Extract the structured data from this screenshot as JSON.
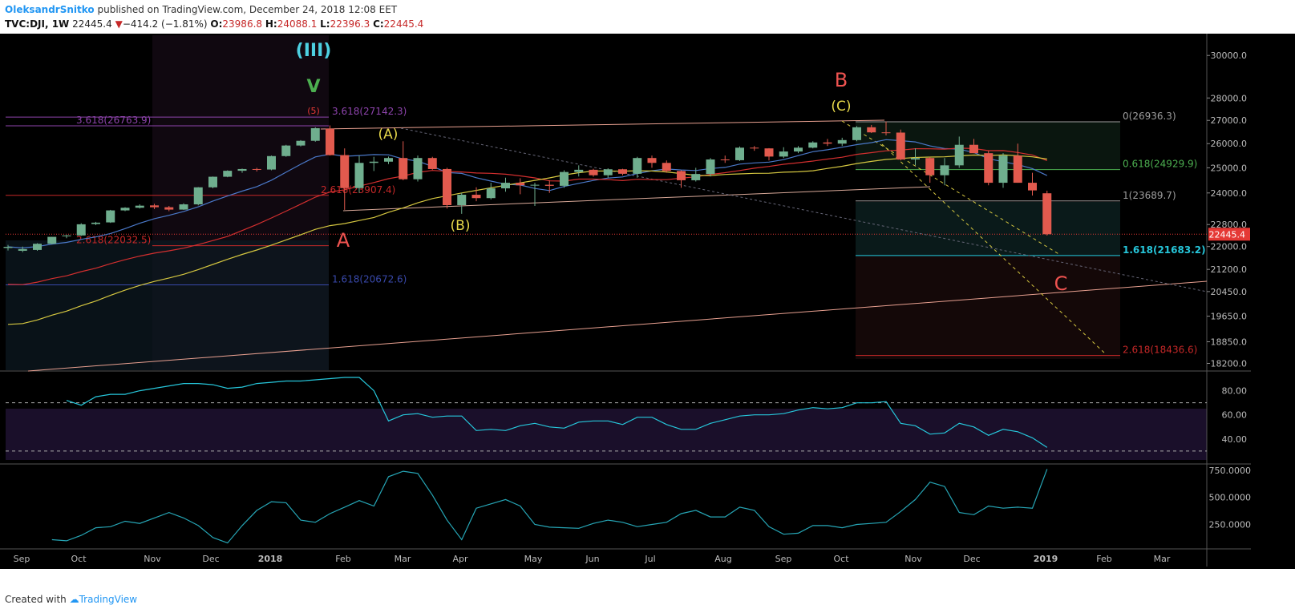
{
  "header": {
    "author": "OleksandrSnitko",
    "published": "published on TradingView.com, December 24, 2018 12:08 EET",
    "symbol": "TVC:DJI, 1W",
    "last": "22445.4",
    "arrow": "▼",
    "change": "−414.2 (−1.81%)",
    "o_label": "O:",
    "o_value": "23986.8",
    "h_label": "H:",
    "h_value": "24088.1",
    "l_label": "L:",
    "l_value": "22396.3",
    "c_label": "C:",
    "c_value": "22445.4"
  },
  "footer": {
    "created_with": "Created with",
    "brand": "TradingView"
  },
  "chart_data": {
    "type": "candlestick",
    "title": "TVC:DJI, 1W",
    "price_axis": {
      "scale": "log",
      "range": [
        18000,
        31000
      ],
      "ticks": [
        "30000.0",
        "28000.0",
        "27000.0",
        "26000.0",
        "25000.0",
        "24000.0",
        "22800.0",
        "22000.0",
        "21200.0",
        "20450.0",
        "19650.0",
        "18850.0",
        "18200.0"
      ],
      "last_price_label": "22445.4"
    },
    "time_axis": {
      "labels": [
        "Sep",
        "Oct",
        "Nov",
        "Dec",
        "2018",
        "Feb",
        "Mar",
        "Apr",
        "May",
        "Jun",
        "Jul",
        "Aug",
        "Sep",
        "Oct",
        "Nov",
        "Dec",
        "2019",
        "Feb",
        "Mar"
      ]
    },
    "candles": [
      {
        "t": 0,
        "o": 21950,
        "h": 22060,
        "l": 21860,
        "c": 21990
      },
      {
        "t": 1,
        "o": 21850,
        "h": 22000,
        "l": 21800,
        "c": 21910
      },
      {
        "t": 2,
        "o": 21880,
        "h": 22120,
        "l": 21850,
        "c": 22100
      },
      {
        "t": 3,
        "o": 22100,
        "h": 22350,
        "l": 22080,
        "c": 22350
      },
      {
        "t": 4,
        "o": 22370,
        "h": 22420,
        "l": 22300,
        "c": 22400
      },
      {
        "t": 5,
        "o": 22400,
        "h": 22850,
        "l": 22380,
        "c": 22810
      },
      {
        "t": 6,
        "o": 22820,
        "h": 22900,
        "l": 22780,
        "c": 22870
      },
      {
        "t": 7,
        "o": 22880,
        "h": 23350,
        "l": 22860,
        "c": 23330
      },
      {
        "t": 8,
        "o": 23330,
        "h": 23450,
        "l": 23300,
        "c": 23430
      },
      {
        "t": 9,
        "o": 23430,
        "h": 23560,
        "l": 23400,
        "c": 23510
      },
      {
        "t": 10,
        "o": 23520,
        "h": 23580,
        "l": 23380,
        "c": 23450
      },
      {
        "t": 11,
        "o": 23450,
        "h": 23500,
        "l": 23300,
        "c": 23360
      },
      {
        "t": 12,
        "o": 23360,
        "h": 23600,
        "l": 23350,
        "c": 23560
      },
      {
        "t": 13,
        "o": 23560,
        "h": 24230,
        "l": 23520,
        "c": 24220
      },
      {
        "t": 14,
        "o": 24220,
        "h": 24650,
        "l": 24180,
        "c": 24640
      },
      {
        "t": 15,
        "o": 24640,
        "h": 24900,
        "l": 24620,
        "c": 24880
      },
      {
        "t": 16,
        "o": 24880,
        "h": 24970,
        "l": 24800,
        "c": 24950
      },
      {
        "t": 17,
        "o": 24950,
        "h": 25000,
        "l": 24850,
        "c": 24930
      },
      {
        "t": 18,
        "o": 24930,
        "h": 25500,
        "l": 24900,
        "c": 25480
      },
      {
        "t": 19,
        "o": 25480,
        "h": 25950,
        "l": 25450,
        "c": 25920
      },
      {
        "t": 20,
        "o": 25920,
        "h": 26150,
        "l": 25880,
        "c": 26120
      },
      {
        "t": 21,
        "o": 26120,
        "h": 26700,
        "l": 26080,
        "c": 26660
      },
      {
        "t": 22,
        "o": 26640,
        "h": 26780,
        "l": 25500,
        "c": 25520
      },
      {
        "t": 23,
        "o": 25520,
        "h": 25800,
        "l": 23350,
        "c": 24190
      },
      {
        "t": 24,
        "o": 24190,
        "h": 25500,
        "l": 24000,
        "c": 25200
      },
      {
        "t": 25,
        "o": 25200,
        "h": 25450,
        "l": 24870,
        "c": 25250
      },
      {
        "t": 26,
        "o": 25250,
        "h": 25460,
        "l": 25150,
        "c": 25400
      },
      {
        "t": 27,
        "o": 25400,
        "h": 26100,
        "l": 24500,
        "c": 24540
      },
      {
        "t": 28,
        "o": 24540,
        "h": 25500,
        "l": 24450,
        "c": 25400
      },
      {
        "t": 29,
        "o": 25400,
        "h": 25450,
        "l": 24920,
        "c": 24950
      },
      {
        "t": 30,
        "o": 24950,
        "h": 25000,
        "l": 23400,
        "c": 23530
      },
      {
        "t": 31,
        "o": 23530,
        "h": 24000,
        "l": 23200,
        "c": 23930
      },
      {
        "t": 32,
        "o": 23930,
        "h": 24220,
        "l": 23680,
        "c": 23800
      },
      {
        "t": 33,
        "o": 23800,
        "h": 24400,
        "l": 23750,
        "c": 24180
      },
      {
        "t": 34,
        "o": 24180,
        "h": 24600,
        "l": 24050,
        "c": 24400
      },
      {
        "t": 35,
        "o": 24400,
        "h": 24580,
        "l": 23950,
        "c": 24300
      },
      {
        "t": 36,
        "o": 24300,
        "h": 24400,
        "l": 23500,
        "c": 24320
      },
      {
        "t": 37,
        "o": 24320,
        "h": 24500,
        "l": 24000,
        "c": 24280
      },
      {
        "t": 38,
        "o": 24280,
        "h": 24900,
        "l": 24200,
        "c": 24830
      },
      {
        "t": 39,
        "o": 24830,
        "h": 25100,
        "l": 24650,
        "c": 24920
      },
      {
        "t": 40,
        "o": 24920,
        "h": 24960,
        "l": 24640,
        "c": 24700
      },
      {
        "t": 41,
        "o": 24700,
        "h": 24980,
        "l": 24600,
        "c": 24940
      },
      {
        "t": 42,
        "o": 24940,
        "h": 24960,
        "l": 24700,
        "c": 24760
      },
      {
        "t": 43,
        "o": 24760,
        "h": 25450,
        "l": 24600,
        "c": 25400
      },
      {
        "t": 44,
        "o": 25400,
        "h": 25500,
        "l": 25000,
        "c": 25200
      },
      {
        "t": 45,
        "o": 25200,
        "h": 25300,
        "l": 24800,
        "c": 24870
      },
      {
        "t": 46,
        "o": 24870,
        "h": 24900,
        "l": 24200,
        "c": 24500
      },
      {
        "t": 47,
        "o": 24500,
        "h": 25000,
        "l": 24450,
        "c": 24750
      },
      {
        "t": 48,
        "o": 24750,
        "h": 25400,
        "l": 24650,
        "c": 25340
      },
      {
        "t": 49,
        "o": 25340,
        "h": 25500,
        "l": 25200,
        "c": 25310
      },
      {
        "t": 50,
        "o": 25310,
        "h": 25880,
        "l": 25280,
        "c": 25830
      },
      {
        "t": 51,
        "o": 25830,
        "h": 25900,
        "l": 25700,
        "c": 25800
      },
      {
        "t": 52,
        "o": 25800,
        "h": 25810,
        "l": 25300,
        "c": 25460
      },
      {
        "t": 53,
        "o": 25460,
        "h": 25850,
        "l": 25400,
        "c": 25670
      },
      {
        "t": 54,
        "o": 25670,
        "h": 25900,
        "l": 25600,
        "c": 25830
      },
      {
        "t": 55,
        "o": 25830,
        "h": 26100,
        "l": 25800,
        "c": 26050
      },
      {
        "t": 56,
        "o": 26050,
        "h": 26200,
        "l": 25900,
        "c": 26000
      },
      {
        "t": 57,
        "o": 26000,
        "h": 26250,
        "l": 25900,
        "c": 26150
      },
      {
        "t": 58,
        "o": 26150,
        "h": 26750,
        "l": 26100,
        "c": 26700
      },
      {
        "t": 59,
        "o": 26700,
        "h": 26800,
        "l": 26450,
        "c": 26480
      },
      {
        "t": 60,
        "o": 26480,
        "h": 26950,
        "l": 26350,
        "c": 26470
      },
      {
        "t": 61,
        "o": 26470,
        "h": 26600,
        "l": 25300,
        "c": 25340
      },
      {
        "t": 62,
        "o": 25340,
        "h": 25800,
        "l": 25100,
        "c": 25400
      },
      {
        "t": 63,
        "o": 25400,
        "h": 25450,
        "l": 24400,
        "c": 24700
      },
      {
        "t": 64,
        "o": 24700,
        "h": 25400,
        "l": 24300,
        "c": 25100
      },
      {
        "t": 65,
        "o": 25100,
        "h": 26300,
        "l": 25000,
        "c": 25950
      },
      {
        "t": 66,
        "o": 25950,
        "h": 26200,
        "l": 25600,
        "c": 25600
      },
      {
        "t": 67,
        "o": 25600,
        "h": 25700,
        "l": 24300,
        "c": 24400
      },
      {
        "t": 68,
        "o": 24400,
        "h": 25600,
        "l": 24200,
        "c": 25500
      },
      {
        "t": 69,
        "o": 25500,
        "h": 26000,
        "l": 24400,
        "c": 24400
      },
      {
        "t": 70,
        "o": 24400,
        "h": 24800,
        "l": 23900,
        "c": 24100
      },
      {
        "t": 71,
        "o": 23986.8,
        "h": 24088.1,
        "l": 22396.3,
        "c": 22445.4
      }
    ],
    "moving_averages": [
      {
        "name": "MA blue",
        "color": "#4a78c8"
      },
      {
        "name": "MA red",
        "color": "#d32f2f"
      },
      {
        "name": "MA yellow",
        "color": "#d4c640"
      }
    ],
    "fib_levels": [
      {
        "label": "3.618(26763.9)",
        "price": 26763.9,
        "color": "#8e44ad"
      },
      {
        "label": "3.618(27142.3)",
        "price": 27142.3,
        "color": "#8e44ad"
      },
      {
        "label": "2.618(23907.4)",
        "price": 23907.4,
        "color": "#c62828"
      },
      {
        "label": "2.618(22032.5)",
        "price": 22032.5,
        "color": "#c62828"
      },
      {
        "label": "1.618(20672.6)",
        "price": 20672.6,
        "color": "#3949ab"
      },
      {
        "label": "0(26936.3)",
        "price": 26936.3,
        "color": "#9e9e9e"
      },
      {
        "label": "0.618(24929.9)",
        "price": 24929.9,
        "color": "#4caf50"
      },
      {
        "label": "1(23689.7)",
        "price": 23689.7,
        "color": "#9e9e9e"
      },
      {
        "label": "1.618(21683.2)",
        "price": 21683.2,
        "color": "#26c6da"
      },
      {
        "label": "2.618(18436.6)",
        "price": 18436.6,
        "color": "#c62828"
      }
    ],
    "wave_labels": [
      {
        "text": "(III)",
        "color": "#4dd0e1"
      },
      {
        "text": "V",
        "color": "#4caf50"
      },
      {
        "text": "(5)",
        "color": "#e53935"
      },
      {
        "text": "(A)",
        "color": "#e6d84a"
      },
      {
        "text": "(B)",
        "color": "#e6d84a"
      },
      {
        "text": "(C)",
        "color": "#e6d84a"
      },
      {
        "text": "A",
        "color": "#ef5350"
      },
      {
        "text": "B",
        "color": "#ef5350"
      },
      {
        "text": "C",
        "color": "#ef5350"
      }
    ],
    "rsi": {
      "ticks": [
        "80.00",
        "60.00",
        "40.00"
      ],
      "levels": [
        70,
        30
      ],
      "values": [
        72,
        68,
        75,
        77,
        77,
        80,
        82,
        84,
        86,
        86,
        85,
        82,
        83,
        86,
        87,
        88,
        88,
        89,
        90,
        91,
        91,
        80,
        55,
        60,
        61,
        58,
        59,
        59,
        47,
        48,
        47,
        51,
        53,
        50,
        49,
        54,
        55,
        55,
        52,
        58,
        58,
        52,
        48,
        48,
        53,
        56,
        59,
        60,
        60,
        61,
        64,
        66,
        65,
        66,
        70,
        70,
        71,
        53,
        51,
        44,
        45,
        53,
        50,
        43,
        48,
        46,
        41,
        33
      ]
    },
    "volume_osc": {
      "ticks": [
        "750.0000",
        "500.0000",
        "250.0000"
      ],
      "values": [
        110,
        100,
        150,
        220,
        230,
        280,
        260,
        310,
        360,
        310,
        240,
        130,
        80,
        240,
        380,
        460,
        450,
        290,
        270,
        350,
        410,
        470,
        420,
        690,
        740,
        720,
        520,
        290,
        110,
        400,
        440,
        480,
        420,
        250,
        225,
        220,
        215,
        260,
        290,
        270,
        230,
        250,
        270,
        350,
        380,
        320,
        320,
        410,
        380,
        230,
        160,
        170,
        240,
        240,
        220,
        250,
        260,
        270,
        370,
        480,
        640,
        600,
        360,
        340,
        420,
        400,
        410,
        400,
        760
      ]
    }
  }
}
